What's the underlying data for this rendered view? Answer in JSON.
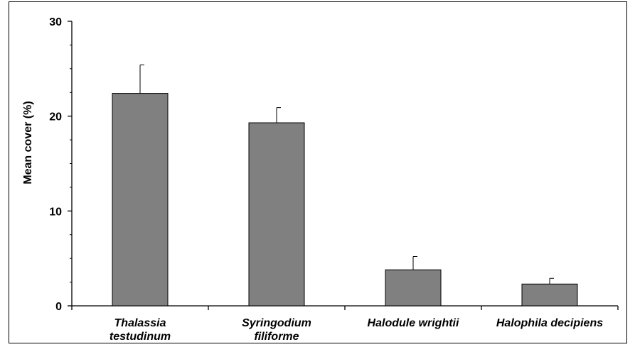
{
  "chart_data": {
    "type": "bar",
    "title": "",
    "xlabel": "",
    "ylabel": "Mean cover (%)",
    "ylim": [
      0,
      30
    ],
    "yticks": [
      0,
      10,
      20,
      30
    ],
    "ytick_labels": [
      "0",
      "10",
      "20",
      "30"
    ],
    "grid": false,
    "legend": "none",
    "categories": [
      [
        "Thalassia",
        "testudinum"
      ],
      [
        "Syringodium",
        "filiforme"
      ],
      [
        "Halodule wrightii"
      ],
      [
        "Halophila decipiens"
      ]
    ],
    "values": [
      22.4,
      19.3,
      3.8,
      2.3
    ],
    "errors": [
      3.0,
      1.6,
      1.4,
      0.6
    ],
    "bar_color": "#808080"
  }
}
